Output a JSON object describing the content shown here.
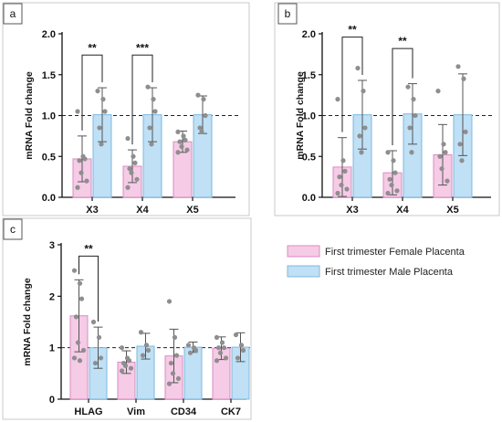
{
  "colors": {
    "female": "#f5cbe6",
    "female_edge": "#d98cc0",
    "male": "#bfe0f5",
    "male_edge": "#7fb9df"
  },
  "legend": {
    "female": "First trimester Female Placenta",
    "male": "First trimester Male Placenta"
  },
  "chart_data": [
    {
      "panel": "a",
      "type": "bar",
      "ylabel": "mRNA Fold change",
      "ylim": [
        0,
        2.0
      ],
      "yticks": [
        "0.0",
        "0.5",
        "1.0",
        "1.5",
        "2.0"
      ],
      "reference_line": 1.0,
      "categories": [
        "X3",
        "X4",
        "X5"
      ],
      "series": [
        {
          "key": "female",
          "values": [
            0.47,
            0.38,
            0.68
          ],
          "errors": [
            0.28,
            0.2,
            0.13
          ],
          "points": [
            [
              1.05,
              0.5,
              0.47,
              0.45,
              0.3,
              0.2,
              0.12
            ],
            [
              0.72,
              0.5,
              0.42,
              0.35,
              0.3,
              0.22,
              0.12
            ],
            [
              0.8,
              0.75,
              0.7,
              0.68,
              0.62,
              0.58,
              0.55
            ]
          ]
        },
        {
          "key": "male",
          "values": [
            1.01,
            1.01,
            1.01
          ],
          "errors": [
            0.33,
            0.33,
            0.23
          ],
          "points": [
            [
              1.3,
              1.2,
              1.05,
              0.85,
              0.65
            ],
            [
              1.35,
              1.2,
              1.05,
              0.85,
              0.65
            ],
            [
              1.25,
              1.2,
              1.0,
              0.85,
              0.8
            ]
          ]
        }
      ],
      "significance": [
        {
          "category": "X3",
          "label": "**",
          "level": 1.74
        },
        {
          "category": "X4",
          "label": "***",
          "level": 1.74
        }
      ]
    },
    {
      "panel": "b",
      "type": "bar",
      "ylabel": "mRNA Fold change",
      "ylim": [
        0,
        2.0
      ],
      "yticks": [
        "0.0",
        "0.5",
        "1.0",
        "1.5",
        "2.0"
      ],
      "reference_line": 1.0,
      "categories": [
        "X3",
        "X4",
        "X5"
      ],
      "series": [
        {
          "key": "female",
          "values": [
            0.37,
            0.3,
            0.52
          ],
          "errors": [
            0.36,
            0.27,
            0.37
          ],
          "points": [
            [
              1.2,
              0.45,
              0.32,
              0.25,
              0.15,
              0.1,
              0.05
            ],
            [
              0.55,
              0.45,
              0.3,
              0.22,
              0.15,
              0.08,
              0.05
            ],
            [
              1.3,
              0.65,
              0.55,
              0.5,
              0.35,
              0.2
            ]
          ]
        },
        {
          "key": "male",
          "values": [
            1.01,
            1.02,
            1.01
          ],
          "errors": [
            0.42,
            0.37,
            0.5
          ],
          "points": [
            [
              1.58,
              1.3,
              0.85,
              0.75,
              0.55
            ],
            [
              1.35,
              1.2,
              1.0,
              0.85,
              0.55
            ],
            [
              1.6,
              1.45,
              0.8,
              0.65,
              0.45
            ]
          ]
        }
      ],
      "significance": [
        {
          "category": "X3",
          "label": "**",
          "level": 1.96
        },
        {
          "category": "X4",
          "label": "**",
          "level": 1.82
        }
      ]
    },
    {
      "panel": "c",
      "type": "bar",
      "ylabel": "mRNA Fold change",
      "ylim": [
        0,
        3
      ],
      "yticks": [
        "0",
        "1",
        "2",
        "3"
      ],
      "reference_line": 1.0,
      "categories": [
        "HLAG",
        "Vim",
        "CD34",
        "CK7"
      ],
      "series": [
        {
          "key": "female",
          "values": [
            1.62,
            0.72,
            0.84,
            0.99
          ],
          "errors": [
            0.7,
            0.22,
            0.52,
            0.22
          ],
          "points": [
            [
              2.5,
              2.25,
              1.95,
              1.6,
              1.1,
              0.95,
              0.8,
              0.75
            ],
            [
              1.0,
              0.8,
              0.75,
              0.7,
              0.65,
              0.6,
              0.55
            ],
            [
              1.9,
              1.2,
              0.85,
              0.7,
              0.5,
              0.4,
              0.3
            ],
            [
              1.2,
              1.1,
              1.0,
              1.0,
              0.9,
              0.8,
              0.75
            ]
          ]
        },
        {
          "key": "male",
          "values": [
            1.0,
            1.03,
            1.01,
            1.01
          ],
          "errors": [
            0.4,
            0.25,
            0.1,
            0.28
          ],
          "points": [
            [
              1.5,
              1.2,
              0.8,
              0.7
            ],
            [
              1.3,
              1.05,
              0.95,
              0.85
            ],
            [
              1.05,
              1.0,
              0.95,
              0.9
            ],
            [
              1.25,
              1.05,
              0.95,
              0.8
            ]
          ]
        }
      ],
      "significance": [
        {
          "category": "HLAG",
          "label": "**",
          "level": 2.78
        }
      ]
    }
  ]
}
